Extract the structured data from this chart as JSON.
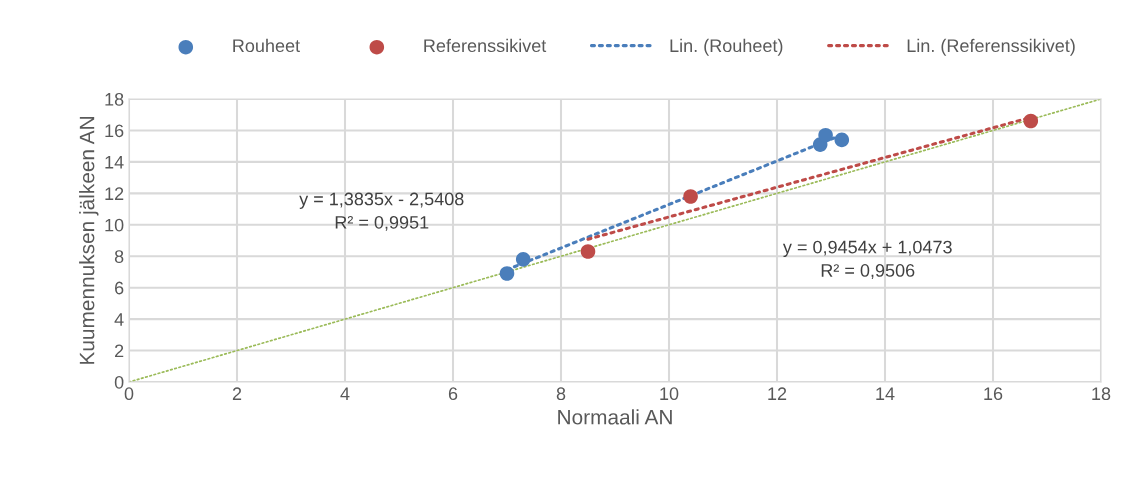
{
  "chart_data": {
    "type": "scatter",
    "xlabel": "Normaali AN",
    "ylabel": "Kuumennuksen jälkeen AN",
    "xlim": [
      0,
      18
    ],
    "ylim": [
      0,
      18
    ],
    "xticks": [
      0,
      2,
      4,
      6,
      8,
      10,
      12,
      14,
      16,
      18
    ],
    "yticks": [
      0,
      2,
      4,
      6,
      8,
      10,
      12,
      14,
      16,
      18
    ],
    "grid": true,
    "legend": "top",
    "series": [
      {
        "name": "Rouheet",
        "marker": "circle",
        "color": "#4a7ebb",
        "x": [
          7.0,
          7.3,
          12.8,
          12.9,
          13.2
        ],
        "values": [
          6.9,
          7.8,
          15.1,
          15.7,
          15.4
        ]
      },
      {
        "name": "Referenssikivet",
        "marker": "circle",
        "color": "#be4b48",
        "x": [
          8.5,
          10.4,
          16.7
        ],
        "values": [
          8.3,
          11.8,
          16.6
        ]
      },
      {
        "name": "Lin. (Rouheet)",
        "type": "line",
        "marker": "none",
        "line_style": "dotted",
        "color": "#4a7ebb",
        "x": [
          7.0,
          13.2
        ],
        "values": [
          7.14,
          15.72
        ]
      },
      {
        "name": "Lin. (Referenssikivet)",
        "type": "line",
        "marker": "none",
        "line_style": "dotted",
        "color": "#be4b48",
        "x": [
          8.5,
          16.7
        ],
        "values": [
          9.08,
          16.83
        ]
      },
      {
        "type": "line",
        "marker": "none",
        "line_style": "dotted",
        "color": "#9bbb59",
        "x": [
          0,
          18
        ],
        "values": [
          0,
          18
        ]
      }
    ],
    "annotations": [
      "y = 1,3835x - 2,5408\nR² = 0,9951",
      "y = 0,9454x + 1,0473\nR² = 0,9506"
    ]
  }
}
